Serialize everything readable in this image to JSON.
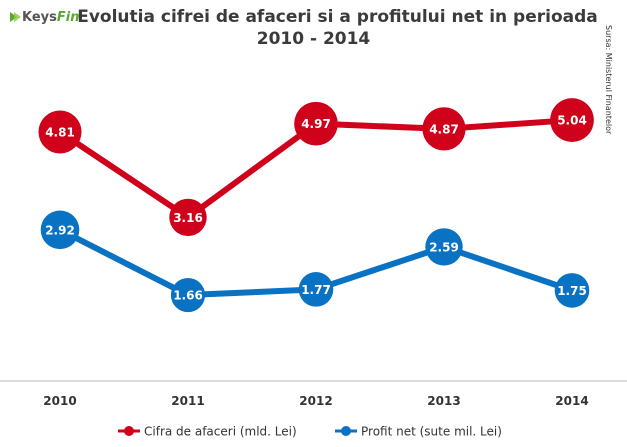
{
  "brand": {
    "name_part1": "Keys",
    "name_part2": "Fin"
  },
  "title": {
    "line1": "Evolutia cifrei de afaceri si a profitului net in perioada",
    "line2": "2010 - 2014"
  },
  "source": "Sursa: Ministerul Finantelor",
  "colors": {
    "revenue": "#d0021b",
    "profit": "#0a72c2",
    "axis": "#bbbbbb"
  },
  "chart_data": {
    "type": "line",
    "categories": [
      "2010",
      "2011",
      "2012",
      "2013",
      "2014"
    ],
    "series": [
      {
        "name": "Cifra de afaceri (mld. Lei)",
        "values": [
          4.81,
          3.16,
          4.97,
          4.87,
          5.04
        ],
        "labels": [
          "4.81",
          "3.16",
          "4.97",
          "4.87",
          "5.04"
        ],
        "color": "#d0021b"
      },
      {
        "name": "Profit net (sute mil. Lei)",
        "values": [
          2.92,
          1.66,
          1.77,
          2.59,
          1.75
        ],
        "labels": [
          "2.92",
          "1.66",
          "1.77",
          "2.59",
          "1.75"
        ],
        "color": "#0a72c2"
      }
    ],
    "ylim": [
      0,
      6.2
    ],
    "title": "Evolutia cifrei de afaceri si a profitului net in perioada 2010 - 2014",
    "legend": "bottom-center",
    "xlabel": "",
    "ylabel": ""
  }
}
